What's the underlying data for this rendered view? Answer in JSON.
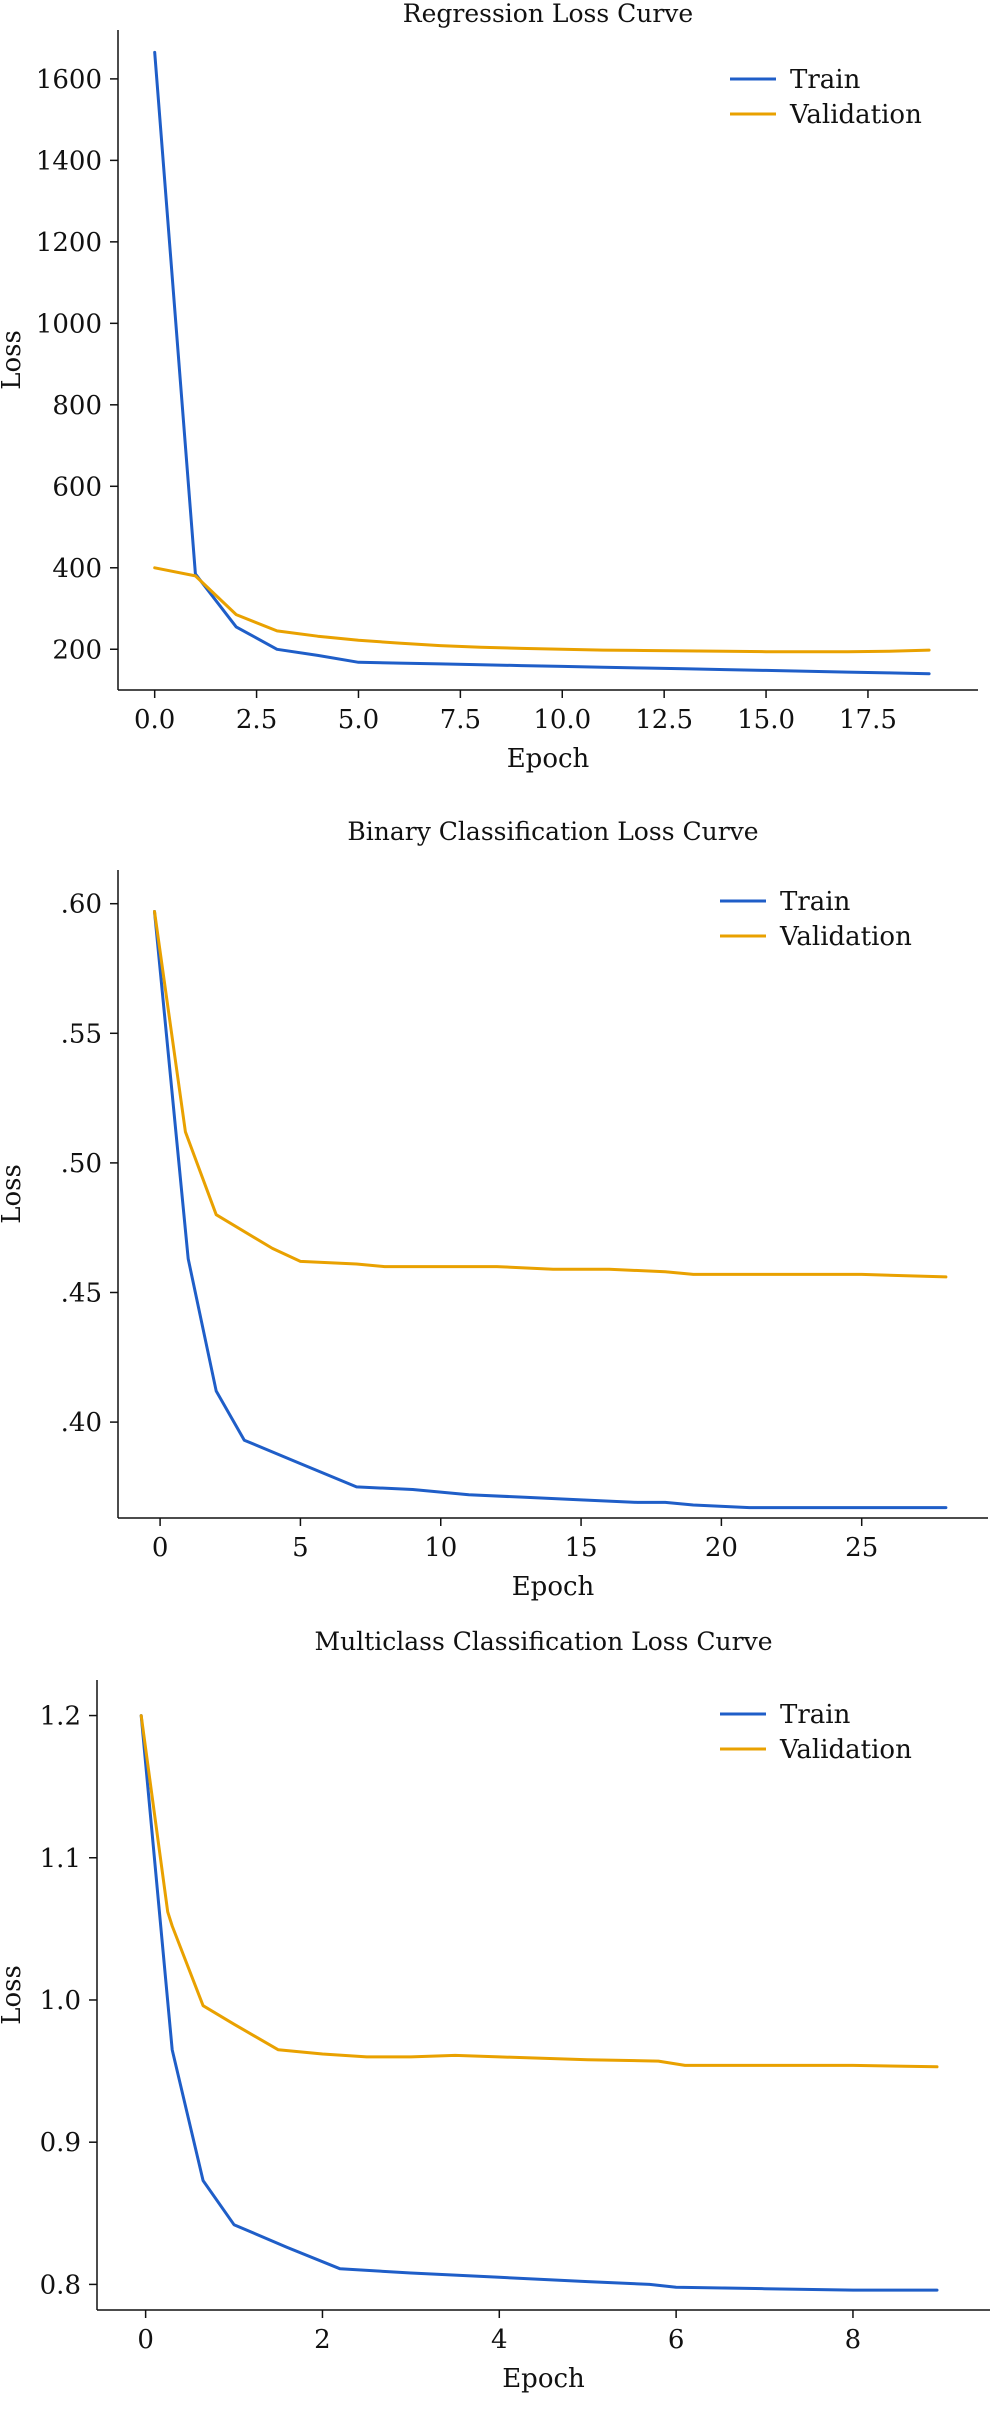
{
  "colors": {
    "train": "#1f5ec8",
    "validation": "#e9a100"
  },
  "chart_data": [
    {
      "type": "line",
      "title": "Regression Loss Curve",
      "xlabel": "Epoch",
      "ylabel": "Loss",
      "xlim": [
        -0.9,
        20.2
      ],
      "ylim": [
        100,
        1720
      ],
      "xticks": [
        0,
        2.5,
        5,
        7.5,
        10,
        12.5,
        15,
        17.5
      ],
      "xtick_labels": [
        "0.0",
        "2.5",
        "5.0",
        "7.5",
        "10.0",
        "12.5",
        "15.0",
        "17.5"
      ],
      "yticks": [
        200,
        400,
        600,
        800,
        1000,
        1200,
        1400,
        1600
      ],
      "ytick_labels": [
        "200",
        "400",
        "600",
        "800",
        "1000",
        "1200",
        "1400",
        "1600"
      ],
      "legend_position": "top-right",
      "grid": false,
      "series": [
        {
          "name": "Train",
          "color_key": "train",
          "x": [
            0,
            1,
            2,
            3,
            4,
            5,
            6,
            7,
            8,
            9,
            10,
            11,
            12,
            13,
            14,
            15,
            16,
            17,
            18,
            19
          ],
          "y": [
            1665,
            385,
            255,
            200,
            185,
            168,
            166,
            164,
            162,
            160,
            158,
            156,
            154,
            152,
            150,
            148,
            146,
            144,
            142,
            140
          ]
        },
        {
          "name": "Validation",
          "color_key": "validation",
          "x": [
            0,
            1,
            2,
            3,
            4,
            5,
            6,
            7,
            8,
            9,
            10,
            11,
            12,
            13,
            14,
            15,
            16,
            17,
            18,
            19
          ],
          "y": [
            400,
            380,
            285,
            245,
            232,
            222,
            215,
            209,
            205,
            202,
            200,
            198,
            197,
            196,
            195,
            194,
            194,
            194,
            195,
            198
          ]
        }
      ]
    },
    {
      "type": "line",
      "title": "Binary Classification Loss Curve",
      "xlabel": "Epoch",
      "ylabel": "Loss",
      "xlim": [
        -1.5,
        29.5
      ],
      "ylim": [
        0.363,
        0.613
      ],
      "xticks": [
        0,
        5,
        10,
        15,
        20,
        25
      ],
      "xtick_labels": [
        "0",
        "5",
        "10",
        "15",
        "20",
        "25"
      ],
      "yticks": [
        0.4,
        0.45,
        0.5,
        0.55,
        0.6
      ],
      "ytick_labels": [
        ".40",
        ".45",
        ".50",
        ".55",
        ".60"
      ],
      "legend_position": "top-right",
      "grid": false,
      "series": [
        {
          "name": "Train",
          "color_key": "train",
          "x": [
            -0.2,
            1,
            2,
            3,
            5,
            7,
            9,
            11,
            13,
            15,
            17,
            18,
            19,
            21,
            23,
            25,
            27,
            28
          ],
          "y": [
            0.597,
            0.463,
            0.412,
            0.393,
            0.384,
            0.375,
            0.374,
            0.372,
            0.371,
            0.37,
            0.369,
            0.369,
            0.368,
            0.367,
            0.367,
            0.367,
            0.367,
            0.367
          ]
        },
        {
          "name": "Validation",
          "color_key": "validation",
          "x": [
            -0.2,
            0.8,
            0.9,
            2,
            4,
            5,
            7,
            8,
            10,
            12,
            14,
            16,
            18,
            19,
            21,
            23,
            25,
            28
          ],
          "y": [
            0.597,
            0.52,
            0.512,
            0.48,
            0.467,
            0.462,
            0.461,
            0.46,
            0.46,
            0.46,
            0.459,
            0.459,
            0.458,
            0.457,
            0.457,
            0.457,
            0.457,
            0.456
          ]
        }
      ]
    },
    {
      "type": "line",
      "title": "Multiclass Classification Loss Curve",
      "xlabel": "Epoch",
      "ylabel": "Loss",
      "xlim": [
        -0.55,
        9.55
      ],
      "ylim": [
        0.782,
        1.225
      ],
      "xticks": [
        0,
        2,
        4,
        6,
        8
      ],
      "xtick_labels": [
        "0",
        "2",
        "4",
        "6",
        "8"
      ],
      "yticks": [
        0.8,
        0.9,
        1.0,
        1.1,
        1.2
      ],
      "ytick_labels": [
        "0.8",
        "0.9",
        "1.0",
        "1.1",
        "1.2"
      ],
      "legend_position": "top-right",
      "grid": false,
      "series": [
        {
          "name": "Train",
          "color_key": "train",
          "x": [
            -0.05,
            0.3,
            0.65,
            1.0,
            1.6,
            2.2,
            3.0,
            4.0,
            5.0,
            5.7,
            6.0,
            7.0,
            8.0,
            8.95
          ],
          "y": [
            1.2,
            0.965,
            0.873,
            0.842,
            0.826,
            0.811,
            0.808,
            0.805,
            0.802,
            0.8,
            0.798,
            0.797,
            0.796,
            0.796
          ]
        },
        {
          "name": "Validation",
          "color_key": "validation",
          "x": [
            -0.05,
            0.25,
            0.3,
            0.65,
            1.0,
            1.5,
            2.0,
            2.5,
            3.0,
            3.5,
            4.0,
            5.0,
            5.8,
            6.1,
            7.0,
            8.0,
            8.95
          ],
          "y": [
            1.2,
            1.062,
            1.052,
            0.996,
            0.983,
            0.965,
            0.962,
            0.96,
            0.96,
            0.961,
            0.96,
            0.958,
            0.957,
            0.954,
            0.954,
            0.954,
            0.953
          ]
        }
      ]
    }
  ]
}
